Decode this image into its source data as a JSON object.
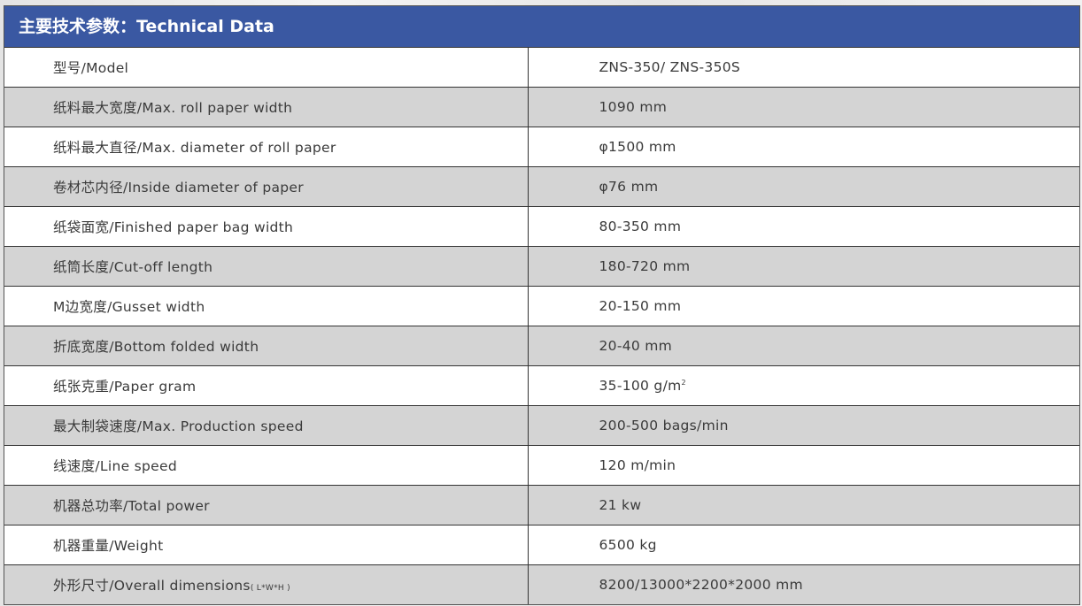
{
  "title": "主要技术参数：Technical Data",
  "rows": [
    {
      "label": "型号/Model",
      "value": "ZNS-350/  ZNS-350S"
    },
    {
      "label": "纸料最大宽度/Max. roll paper width",
      "value": "1090 mm"
    },
    {
      "label": "纸料最大直径/Max. diameter of roll paper",
      "value": "φ1500 mm"
    },
    {
      "label": "卷材芯内径/Inside diameter of paper",
      "value": "φ76 mm"
    },
    {
      "label": "纸袋面宽/Finished paper bag width",
      "value": "80-350 mm"
    },
    {
      "label": "纸筒长度/Cut-off length",
      "value": "180-720 mm"
    },
    {
      "label": "M边宽度/Gusset width",
      "value": "20-150 mm"
    },
    {
      "label": "折底宽度/Bottom folded width",
      "value": "20-40 mm"
    },
    {
      "label": "纸张克重/Paper gram",
      "value": "35-100 g/m",
      "sup": "2"
    },
    {
      "label": "最大制袋速度/Max. Production speed",
      "value": "200-500 bags/min"
    },
    {
      "label": "线速度/Line speed",
      "value": "120 m/min"
    },
    {
      "label": "机器总功率/Total power",
      "value": "21  kw"
    },
    {
      "label": "机器重量/Weight",
      "value": "6500  kg"
    },
    {
      "label": "外形尺寸/Overall dimensions",
      "suffix": "( L*W*H )",
      "value": "8200/13000*2200*2000 mm"
    }
  ]
}
